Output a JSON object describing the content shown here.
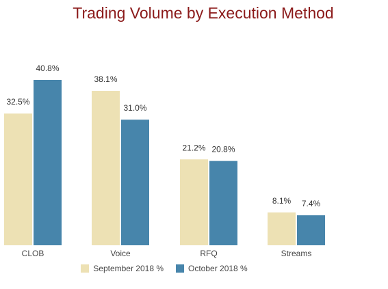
{
  "chart_data": {
    "type": "bar",
    "title": "Trading Volume by Execution Method",
    "categories": [
      "CLOB",
      "Voice",
      "RFQ",
      "Streams"
    ],
    "series": [
      {
        "name": "September 2018 %",
        "values": [
          32.5,
          38.1,
          21.2,
          8.1
        ],
        "labels": [
          "32.5%",
          "38.1%",
          "21.2%",
          "8.1%"
        ],
        "color": "#ede1b4"
      },
      {
        "name": "October 2018 %",
        "values": [
          40.8,
          31.0,
          20.8,
          7.4
        ],
        "labels": [
          "40.8%",
          "31.0%",
          "20.8%",
          "7.4%"
        ],
        "color": "#4785ab"
      }
    ],
    "ylim": [
      0,
      40.8
    ],
    "grid": false,
    "legend": "bottom"
  }
}
